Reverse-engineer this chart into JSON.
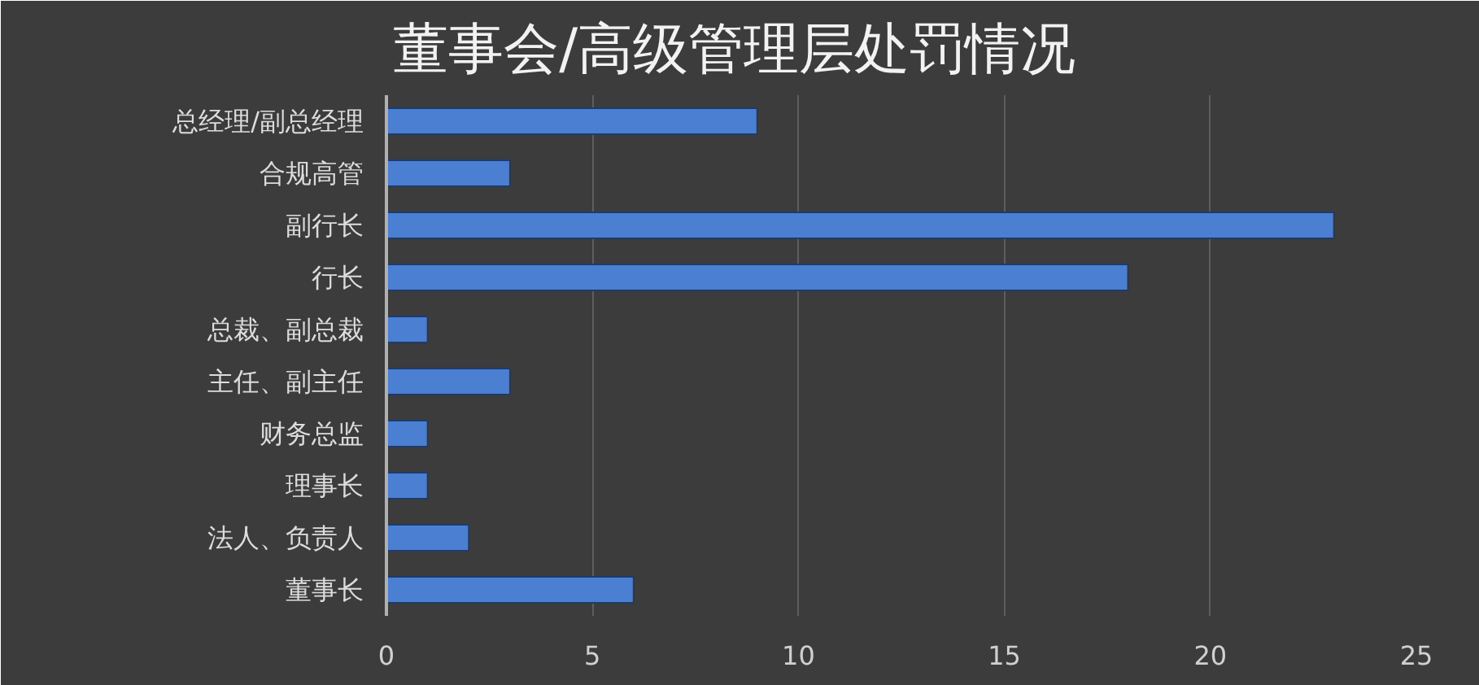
{
  "chart_data": {
    "type": "bar",
    "orientation": "horizontal",
    "title": "董事会/高级管理层处罚情况",
    "categories": [
      "总经理/副总经理",
      "合规高管",
      "副行长",
      "行长",
      "总裁、副总裁",
      "主任、副主任",
      "财务总监",
      "理事长",
      "法人、负责人",
      "董事长"
    ],
    "values": [
      9,
      3,
      23,
      18,
      1,
      3,
      1,
      1,
      2,
      6
    ],
    "color": "#4a7fd2",
    "xlim": [
      0,
      25
    ],
    "xticks": [
      0,
      5,
      10,
      15,
      20,
      25
    ],
    "grid": "x"
  }
}
